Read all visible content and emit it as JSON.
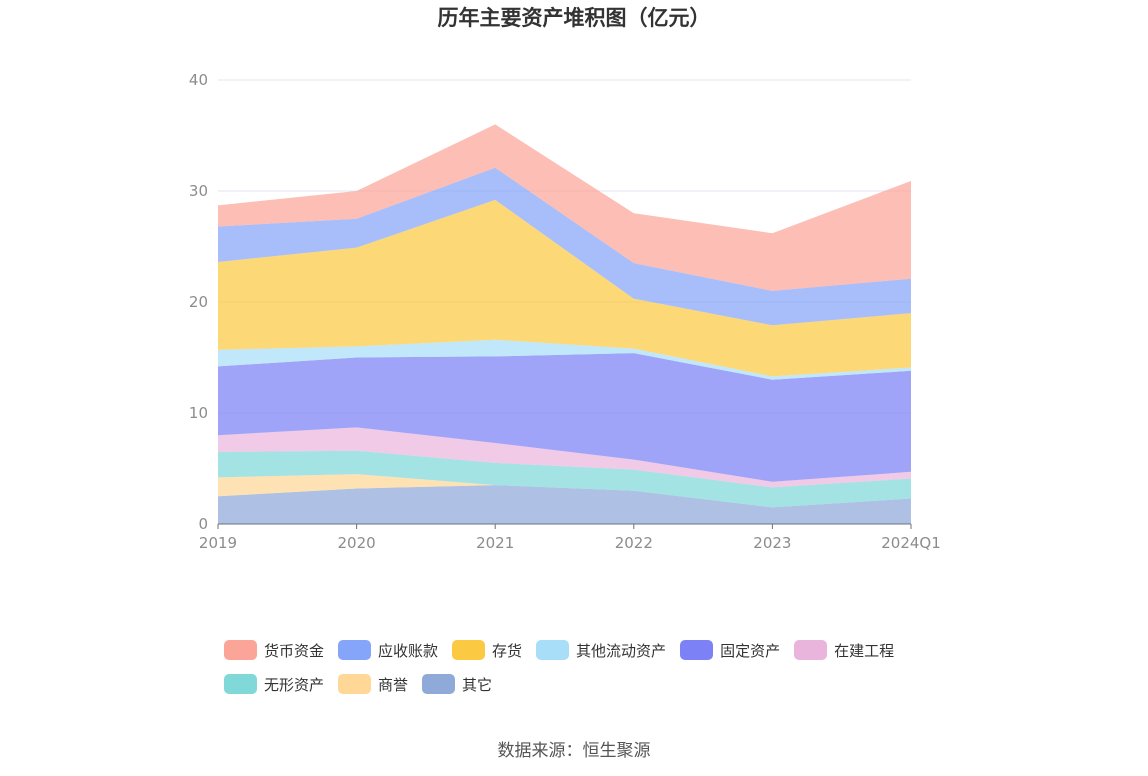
{
  "chart_data": {
    "type": "area",
    "stacked": true,
    "title": "历年主要资产堆积图（亿元）",
    "categories": [
      "2019",
      "2020",
      "2021",
      "2022",
      "2023",
      "2024Q1"
    ],
    "ylim": [
      0,
      40
    ],
    "yticks": [
      0,
      10,
      20,
      30,
      40
    ],
    "grid": true,
    "legend_position": "bottom",
    "series": [
      {
        "name": "其它",
        "color": "#8fa9d9",
        "values": [
          2.5,
          3.2,
          3.5,
          3.0,
          1.5,
          2.3
        ]
      },
      {
        "name": "商誉",
        "color": "#ffd797",
        "values": [
          1.7,
          1.3,
          0.0,
          0.0,
          0.0,
          0.0
        ]
      },
      {
        "name": "无形资产",
        "color": "#80d8d8",
        "values": [
          2.3,
          2.1,
          2.0,
          1.9,
          1.8,
          1.8
        ]
      },
      {
        "name": "在建工程",
        "color": "#eab5dc",
        "values": [
          1.5,
          2.1,
          1.8,
          0.9,
          0.5,
          0.6
        ]
      },
      {
        "name": "固定资产",
        "color": "#7c81f5",
        "values": [
          6.2,
          6.3,
          7.8,
          9.6,
          9.2,
          9.1
        ]
      },
      {
        "name": "其他流动资产",
        "color": "#a8def8",
        "values": [
          1.5,
          1.0,
          1.5,
          0.4,
          0.3,
          0.3
        ]
      },
      {
        "name": "存货",
        "color": "#fcc943",
        "values": [
          7.9,
          8.9,
          12.6,
          4.5,
          4.6,
          4.9
        ]
      },
      {
        "name": "应收账款",
        "color": "#85a5fa",
        "values": [
          3.2,
          2.6,
          2.9,
          3.2,
          3.1,
          3.1
        ]
      },
      {
        "name": "货币资金",
        "color": "#fba598",
        "values": [
          1.9,
          2.5,
          3.9,
          4.5,
          5.2,
          8.8
        ]
      }
    ],
    "legend_order": [
      "货币资金",
      "应收账款",
      "存货",
      "其他流动资产",
      "固定资产",
      "在建工程",
      "无形资产",
      "商誉",
      "其它"
    ]
  },
  "source": "数据来源：恒生聚源"
}
